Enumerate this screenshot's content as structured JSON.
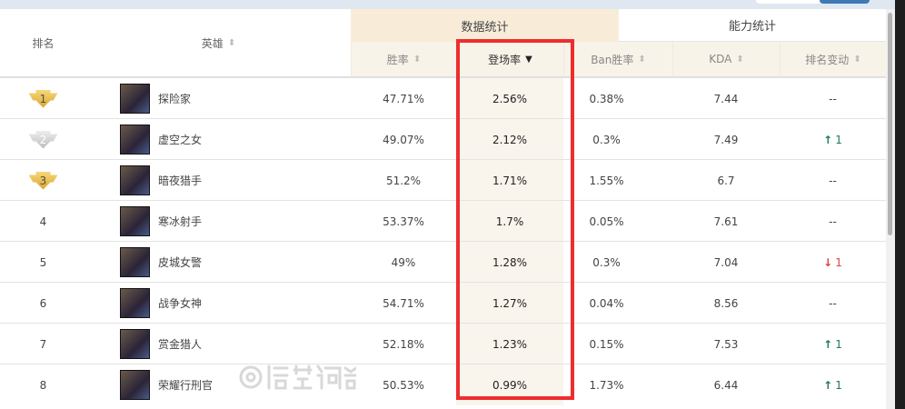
{
  "header": {
    "rank": "排名",
    "hero": "英雄",
    "group_data": "数据统计",
    "group_ability": "能力统计",
    "cols": [
      "胜率",
      "登场率",
      "Ban胜率",
      "KDA",
      "排名变动"
    ]
  },
  "sort_icon": "sort-updown-icon",
  "active_sort_icon": "caret-down-icon",
  "colors": {
    "highlight_border": "#ee2d2d",
    "up": "#1e7b4f",
    "down": "#e04040",
    "gold": "#e0b43a",
    "silver": "#c8c8c8"
  },
  "rows": [
    {
      "rank": "1",
      "medal": "gold",
      "name": "探险家",
      "win": "47.71%",
      "pick": "2.56%",
      "ban": "0.38%",
      "kda": "7.44",
      "change": "--",
      "dir": ""
    },
    {
      "rank": "2",
      "medal": "silver",
      "name": "虚空之女",
      "win": "49.07%",
      "pick": "2.12%",
      "ban": "0.3%",
      "kda": "7.49",
      "change": "1",
      "dir": "up"
    },
    {
      "rank": "3",
      "medal": "gold",
      "name": "暗夜猎手",
      "win": "51.2%",
      "pick": "1.71%",
      "ban": "1.55%",
      "kda": "6.7",
      "change": "--",
      "dir": ""
    },
    {
      "rank": "4",
      "medal": "",
      "name": "寒冰射手",
      "win": "53.37%",
      "pick": "1.7%",
      "ban": "0.05%",
      "kda": "7.61",
      "change": "--",
      "dir": ""
    },
    {
      "rank": "5",
      "medal": "",
      "name": "皮城女警",
      "win": "49%",
      "pick": "1.28%",
      "ban": "0.3%",
      "kda": "7.04",
      "change": "1",
      "dir": "down"
    },
    {
      "rank": "6",
      "medal": "",
      "name": "战争女神",
      "win": "54.71%",
      "pick": "1.27%",
      "ban": "0.04%",
      "kda": "8.56",
      "change": "--",
      "dir": ""
    },
    {
      "rank": "7",
      "medal": "",
      "name": "赏金猎人",
      "win": "52.18%",
      "pick": "1.23%",
      "ban": "0.15%",
      "kda": "7.53",
      "change": "1",
      "dir": "up"
    },
    {
      "rank": "8",
      "medal": "",
      "name": "荣耀行刑官",
      "win": "50.53%",
      "pick": "0.99%",
      "ban": "1.73%",
      "kda": "6.44",
      "change": "1",
      "dir": "up"
    }
  ],
  "watermark": "悟空问答"
}
